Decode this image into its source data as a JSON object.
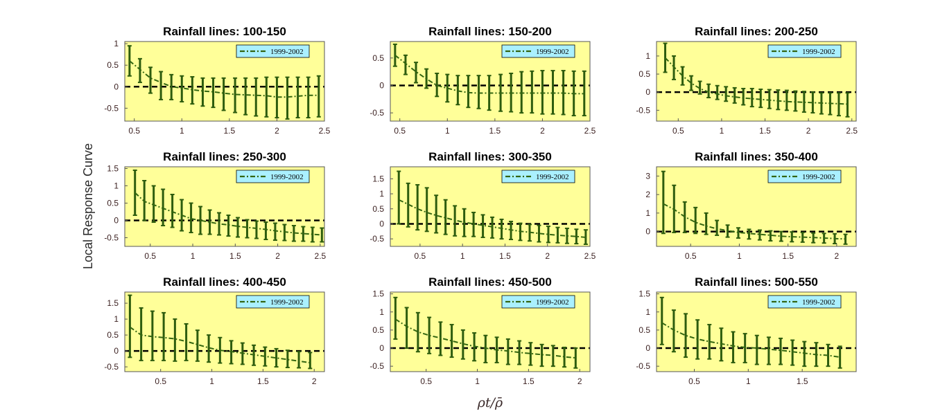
{
  "figure": {
    "ylabel": "Local Response Curve",
    "xlabel": "ρt/ρ̄"
  },
  "colors": {
    "plot_bg": "#ffff99",
    "legend_bg": "#aaf0ff",
    "series": "#336611",
    "errorbar": "#2d5c0e",
    "zero_line": "#000000",
    "axis": "#555555",
    "tick_text": "#3a1f1f"
  },
  "chart_data": [
    {
      "type": "line",
      "title": "Rainfall lines: 100-150",
      "legend": "1999-2002",
      "xlim": [
        0.4,
        2.5
      ],
      "ylim": [
        -0.8,
        1.05
      ],
      "xticks": [
        0.5,
        1,
        1.5,
        2,
        2.5
      ],
      "xtick_labels": [
        "0.5",
        "1",
        "1.5",
        "2",
        "2.5"
      ],
      "yticks": [
        -0.5,
        0,
        0.5,
        1
      ],
      "ytick_labels": [
        "-0.5",
        "0",
        "0.5",
        "1"
      ],
      "x": [
        0.45,
        0.56,
        0.67,
        0.78,
        0.89,
        1.0,
        1.11,
        1.22,
        1.33,
        1.44,
        1.56,
        1.67,
        1.78,
        1.89,
        2.0,
        2.11,
        2.22,
        2.33,
        2.44
      ],
      "y": [
        0.6,
        0.4,
        0.2,
        0.1,
        0.0,
        -0.03,
        -0.07,
        -0.1,
        -0.12,
        -0.15,
        -0.18,
        -0.19,
        -0.2,
        -0.21,
        -0.24,
        -0.24,
        -0.22,
        -0.2,
        -0.2
      ],
      "lower": [
        0.25,
        0.1,
        -0.15,
        -0.3,
        -0.3,
        -0.35,
        -0.4,
        -0.45,
        -0.48,
        -0.55,
        -0.6,
        -0.65,
        -0.68,
        -0.7,
        -0.72,
        -0.75,
        -0.72,
        -0.72,
        -0.7
      ],
      "upper": [
        0.95,
        0.65,
        0.45,
        0.35,
        0.28,
        0.25,
        0.23,
        0.2,
        0.2,
        0.2,
        0.2,
        0.2,
        0.2,
        0.22,
        0.22,
        0.22,
        0.22,
        0.22,
        0.25
      ]
    },
    {
      "type": "line",
      "title": "Rainfall lines: 150-200",
      "legend": "1999-2002",
      "xlim": [
        0.4,
        2.5
      ],
      "ylim": [
        -0.65,
        0.8
      ],
      "xticks": [
        0.5,
        1,
        1.5,
        2,
        2.5
      ],
      "xtick_labels": [
        "0.5",
        "1",
        "1.5",
        "2",
        "2.5"
      ],
      "yticks": [
        -0.5,
        0,
        0.5
      ],
      "ytick_labels": [
        "-0.5",
        "0",
        "0.5"
      ],
      "x": [
        0.45,
        0.56,
        0.67,
        0.78,
        0.89,
        1.0,
        1.11,
        1.22,
        1.33,
        1.44,
        1.56,
        1.67,
        1.78,
        1.89,
        2.0,
        2.11,
        2.22,
        2.33,
        2.44
      ],
      "y": [
        0.55,
        0.4,
        0.25,
        0.12,
        0.0,
        -0.05,
        -0.1,
        -0.13,
        -0.14,
        -0.14,
        -0.14,
        -0.14,
        -0.14,
        -0.14,
        -0.14,
        -0.14,
        -0.14,
        -0.15,
        -0.15
      ],
      "lower": [
        0.35,
        0.2,
        0.05,
        -0.05,
        -0.2,
        -0.3,
        -0.35,
        -0.4,
        -0.42,
        -0.45,
        -0.47,
        -0.48,
        -0.5,
        -0.5,
        -0.52,
        -0.52,
        -0.53,
        -0.55,
        -0.55
      ],
      "upper": [
        0.75,
        0.55,
        0.42,
        0.3,
        0.22,
        0.2,
        0.18,
        0.18,
        0.18,
        0.18,
        0.2,
        0.22,
        0.25,
        0.26,
        0.27,
        0.27,
        0.27,
        0.26,
        0.26
      ]
    },
    {
      "type": "line",
      "title": "Rainfall lines: 200-250",
      "legend": "1999-2002",
      "xlim": [
        0.25,
        2.55
      ],
      "ylim": [
        -0.8,
        1.4
      ],
      "xticks": [
        0.5,
        1,
        1.5,
        2,
        2.5
      ],
      "xtick_labels": [
        "0.5",
        "1",
        "1.5",
        "2",
        "2.5"
      ],
      "yticks": [
        -0.5,
        0,
        0.5,
        1
      ],
      "ytick_labels": [
        "-0.5",
        "0",
        "0.5",
        "1"
      ],
      "x": [
        0.35,
        0.45,
        0.55,
        0.65,
        0.75,
        0.85,
        0.95,
        1.05,
        1.15,
        1.25,
        1.35,
        1.45,
        1.55,
        1.65,
        1.75,
        1.85,
        1.95,
        2.05,
        2.15,
        2.25,
        2.35,
        2.45
      ],
      "y": [
        0.95,
        0.7,
        0.45,
        0.25,
        0.1,
        0.0,
        -0.05,
        -0.1,
        -0.13,
        -0.16,
        -0.18,
        -0.2,
        -0.22,
        -0.24,
        -0.26,
        -0.27,
        -0.28,
        -0.29,
        -0.3,
        -0.31,
        -0.32,
        -0.33
      ],
      "lower": [
        0.55,
        0.35,
        0.2,
        0.05,
        -0.05,
        -0.15,
        -0.2,
        -0.25,
        -0.3,
        -0.35,
        -0.4,
        -0.42,
        -0.45,
        -0.48,
        -0.5,
        -0.52,
        -0.55,
        -0.57,
        -0.6,
        -0.62,
        -0.65,
        -0.68
      ],
      "upper": [
        1.35,
        1.0,
        0.7,
        0.45,
        0.3,
        0.22,
        0.18,
        0.15,
        0.12,
        0.1,
        0.1,
        0.08,
        0.07,
        0.06,
        0.05,
        0.03,
        0.02,
        0.0,
        -0.02,
        -0.02,
        -0.02,
        -0.02
      ]
    },
    {
      "type": "line",
      "title": "Rainfall lines: 250-300",
      "legend": "1999-2002",
      "xlim": [
        0.2,
        2.55
      ],
      "ylim": [
        -0.75,
        1.55
      ],
      "xticks": [
        0.5,
        1,
        1.5,
        2,
        2.5
      ],
      "xtick_labels": [
        "0.5",
        "1",
        "1.5",
        "2",
        "2.5"
      ],
      "yticks": [
        -0.5,
        0,
        0.5,
        1,
        1.5
      ],
      "ytick_labels": [
        "-0.5",
        "0",
        "0.5",
        "1",
        "1.5"
      ],
      "x": [
        0.32,
        0.43,
        0.54,
        0.65,
        0.76,
        0.87,
        0.98,
        1.09,
        1.2,
        1.31,
        1.42,
        1.53,
        1.64,
        1.75,
        1.86,
        1.97,
        2.08,
        2.19,
        2.3,
        2.41,
        2.52
      ],
      "y": [
        0.8,
        0.55,
        0.45,
        0.35,
        0.25,
        0.15,
        0.05,
        0.0,
        -0.05,
        -0.1,
        -0.13,
        -0.17,
        -0.2,
        -0.23,
        -0.26,
        -0.3,
        -0.33,
        -0.36,
        -0.38,
        -0.4,
        -0.42
      ],
      "lower": [
        0.15,
        0.0,
        -0.05,
        -0.15,
        -0.2,
        -0.3,
        -0.35,
        -0.4,
        -0.4,
        -0.42,
        -0.45,
        -0.48,
        -0.5,
        -0.52,
        -0.55,
        -0.57,
        -0.58,
        -0.6,
        -0.6,
        -0.62,
        -0.62
      ],
      "upper": [
        1.45,
        1.15,
        1.0,
        0.9,
        0.75,
        0.6,
        0.5,
        0.4,
        0.3,
        0.22,
        0.15,
        0.08,
        0.02,
        -0.02,
        -0.05,
        -0.08,
        -0.12,
        -0.15,
        -0.18,
        -0.2,
        -0.22
      ]
    },
    {
      "type": "line",
      "title": "Rainfall lines: 300-350",
      "legend": "1999-2002",
      "xlim": [
        0.15,
        2.5
      ],
      "ylim": [
        -0.75,
        1.9
      ],
      "xticks": [
        0.5,
        1,
        1.5,
        2,
        2.5
      ],
      "xtick_labels": [
        "0.5",
        "1",
        "1.5",
        "2",
        "2.5"
      ],
      "yticks": [
        -0.5,
        0,
        0.5,
        1,
        1.5
      ],
      "ytick_labels": [
        "-0.5",
        "0",
        "0.5",
        "1",
        "1.5"
      ],
      "x": [
        0.25,
        0.36,
        0.47,
        0.58,
        0.69,
        0.8,
        0.91,
        1.02,
        1.13,
        1.24,
        1.35,
        1.46,
        1.57,
        1.68,
        1.79,
        1.9,
        2.01,
        2.12,
        2.23,
        2.34,
        2.45
      ],
      "y": [
        0.8,
        0.65,
        0.5,
        0.38,
        0.28,
        0.2,
        0.12,
        0.05,
        0.0,
        -0.05,
        -0.1,
        -0.15,
        -0.2,
        -0.25,
        -0.28,
        -0.32,
        -0.35,
        -0.38,
        -0.4,
        -0.42,
        -0.45
      ],
      "lower": [
        0.0,
        -0.1,
        -0.2,
        -0.25,
        -0.3,
        -0.35,
        -0.4,
        -0.42,
        -0.42,
        -0.45,
        -0.47,
        -0.5,
        -0.52,
        -0.55,
        -0.57,
        -0.6,
        -0.62,
        -0.63,
        -0.65,
        -0.66,
        -0.68
      ],
      "upper": [
        1.75,
        1.35,
        1.3,
        1.2,
        0.95,
        0.8,
        0.6,
        0.5,
        0.38,
        0.3,
        0.22,
        0.15,
        0.08,
        0.02,
        -0.02,
        -0.05,
        -0.08,
        -0.12,
        -0.15,
        -0.18,
        -0.2
      ]
    },
    {
      "type": "line",
      "title": "Rainfall lines: 350-400",
      "legend": "1999-2002",
      "xlim": [
        0.15,
        2.2
      ],
      "ylim": [
        -0.8,
        3.5
      ],
      "xticks": [
        0.5,
        1,
        1.5,
        2
      ],
      "xtick_labels": [
        "0.5",
        "1",
        "1.5",
        "2"
      ],
      "yticks": [
        0,
        1,
        2,
        3
      ],
      "ytick_labels": [
        "0",
        "1",
        "2",
        "3"
      ],
      "x": [
        0.22,
        0.33,
        0.44,
        0.55,
        0.66,
        0.77,
        0.88,
        0.99,
        1.1,
        1.21,
        1.32,
        1.43,
        1.54,
        1.65,
        1.76,
        1.87,
        1.98,
        2.09
      ],
      "y": [
        1.5,
        1.2,
        0.8,
        0.5,
        0.3,
        0.15,
        0.05,
        -0.05,
        -0.1,
        -0.15,
        -0.2,
        -0.25,
        -0.28,
        -0.3,
        -0.32,
        -0.35,
        -0.38,
        -0.4
      ],
      "lower": [
        -0.1,
        -0.05,
        -0.05,
        -0.1,
        -0.15,
        -0.2,
        -0.3,
        -0.35,
        -0.4,
        -0.45,
        -0.5,
        -0.52,
        -0.55,
        -0.57,
        -0.6,
        -0.62,
        -0.65,
        -0.68
      ],
      "upper": [
        3.25,
        2.5,
        1.6,
        1.3,
        1.0,
        0.6,
        0.35,
        0.2,
        0.12,
        0.08,
        0.04,
        0.0,
        -0.02,
        -0.05,
        -0.08,
        -0.1,
        -0.12,
        -0.15
      ]
    },
    {
      "type": "line",
      "title": "Rainfall lines: 400-450",
      "legend": "1999-2002",
      "xlim": [
        0.15,
        2.1
      ],
      "ylim": [
        -0.65,
        1.85
      ],
      "xticks": [
        0.5,
        1,
        1.5,
        2
      ],
      "xtick_labels": [
        "0.5",
        "1",
        "1.5",
        "2"
      ],
      "yticks": [
        -0.5,
        0,
        0.5,
        1,
        1.5
      ],
      "ytick_labels": [
        "-0.5",
        "0",
        "0.5",
        "1",
        "1.5"
      ],
      "x": [
        0.2,
        0.31,
        0.42,
        0.53,
        0.64,
        0.75,
        0.86,
        0.97,
        1.08,
        1.19,
        1.3,
        1.41,
        1.52,
        1.63,
        1.74,
        1.85,
        1.96
      ],
      "y": [
        0.75,
        0.5,
        0.45,
        0.42,
        0.38,
        0.3,
        0.2,
        0.1,
        0.02,
        -0.02,
        -0.07,
        -0.12,
        -0.17,
        -0.22,
        -0.27,
        -0.32,
        -0.37
      ],
      "lower": [
        -0.2,
        -0.3,
        -0.3,
        -0.3,
        -0.32,
        -0.3,
        -0.32,
        -0.35,
        -0.38,
        -0.4,
        -0.42,
        -0.45,
        -0.47,
        -0.5,
        -0.52,
        -0.53,
        -0.55
      ],
      "upper": [
        1.75,
        1.35,
        1.25,
        1.2,
        1.0,
        0.85,
        0.65,
        0.5,
        0.42,
        0.32,
        0.25,
        0.18,
        0.12,
        0.07,
        0.02,
        -0.02,
        -0.05
      ]
    },
    {
      "type": "line",
      "title": "Rainfall lines: 450-500",
      "legend": "1999-2002",
      "xlim": [
        0.15,
        2.1
      ],
      "ylim": [
        -0.65,
        1.55
      ],
      "xticks": [
        0.5,
        1,
        1.5,
        2
      ],
      "xtick_labels": [
        "0.5",
        "1",
        "1.5",
        "2"
      ],
      "yticks": [
        -0.5,
        0,
        0.5,
        1,
        1.5
      ],
      "ytick_labels": [
        "-0.5",
        "0",
        "0.5",
        "1",
        "1.5"
      ],
      "x": [
        0.2,
        0.31,
        0.42,
        0.53,
        0.64,
        0.75,
        0.86,
        0.97,
        1.08,
        1.19,
        1.3,
        1.41,
        1.52,
        1.63,
        1.74,
        1.85,
        1.96
      ],
      "y": [
        0.8,
        0.6,
        0.45,
        0.35,
        0.28,
        0.2,
        0.12,
        0.05,
        0.0,
        -0.05,
        -0.08,
        -0.12,
        -0.15,
        -0.18,
        -0.2,
        -0.24,
        -0.27
      ],
      "lower": [
        0.25,
        0.0,
        -0.1,
        -0.15,
        -0.2,
        -0.25,
        -0.3,
        -0.35,
        -0.4,
        -0.4,
        -0.45,
        -0.45,
        -0.47,
        -0.5,
        -0.5,
        -0.52,
        -0.55
      ],
      "upper": [
        1.4,
        1.12,
        0.98,
        0.85,
        0.72,
        0.65,
        0.5,
        0.42,
        0.35,
        0.3,
        0.25,
        0.2,
        0.15,
        0.1,
        0.07,
        0.02,
        0.0
      ]
    },
    {
      "type": "line",
      "title": "Rainfall lines: 500-550",
      "legend": "1999-2002",
      "xlim": [
        0.15,
        2.0
      ],
      "ylim": [
        -0.65,
        1.55
      ],
      "xticks": [
        0.5,
        1,
        1.5
      ],
      "xtick_labels": [
        "0.5",
        "1",
        "1.5"
      ],
      "yticks": [
        -0.5,
        0,
        0.5,
        1,
        1.5
      ],
      "ytick_labels": [
        "-0.5",
        "0",
        "0.5",
        "1",
        "1.5"
      ],
      "x": [
        0.2,
        0.31,
        0.42,
        0.53,
        0.64,
        0.75,
        0.86,
        0.97,
        1.08,
        1.19,
        1.3,
        1.41,
        1.52,
        1.63,
        1.74,
        1.85
      ],
      "y": [
        0.7,
        0.5,
        0.35,
        0.25,
        0.18,
        0.12,
        0.06,
        0.02,
        0.0,
        -0.03,
        -0.06,
        -0.1,
        -0.14,
        -0.18,
        -0.2,
        -0.25
      ],
      "lower": [
        0.1,
        -0.1,
        -0.25,
        -0.3,
        -0.3,
        -0.35,
        -0.4,
        -0.4,
        -0.45,
        -0.45,
        -0.45,
        -0.47,
        -0.5,
        -0.5,
        -0.5,
        -0.55
      ],
      "upper": [
        1.4,
        1.05,
        0.95,
        0.78,
        0.65,
        0.55,
        0.45,
        0.4,
        0.35,
        0.3,
        0.27,
        0.22,
        0.18,
        0.15,
        0.1,
        0.05
      ]
    }
  ]
}
